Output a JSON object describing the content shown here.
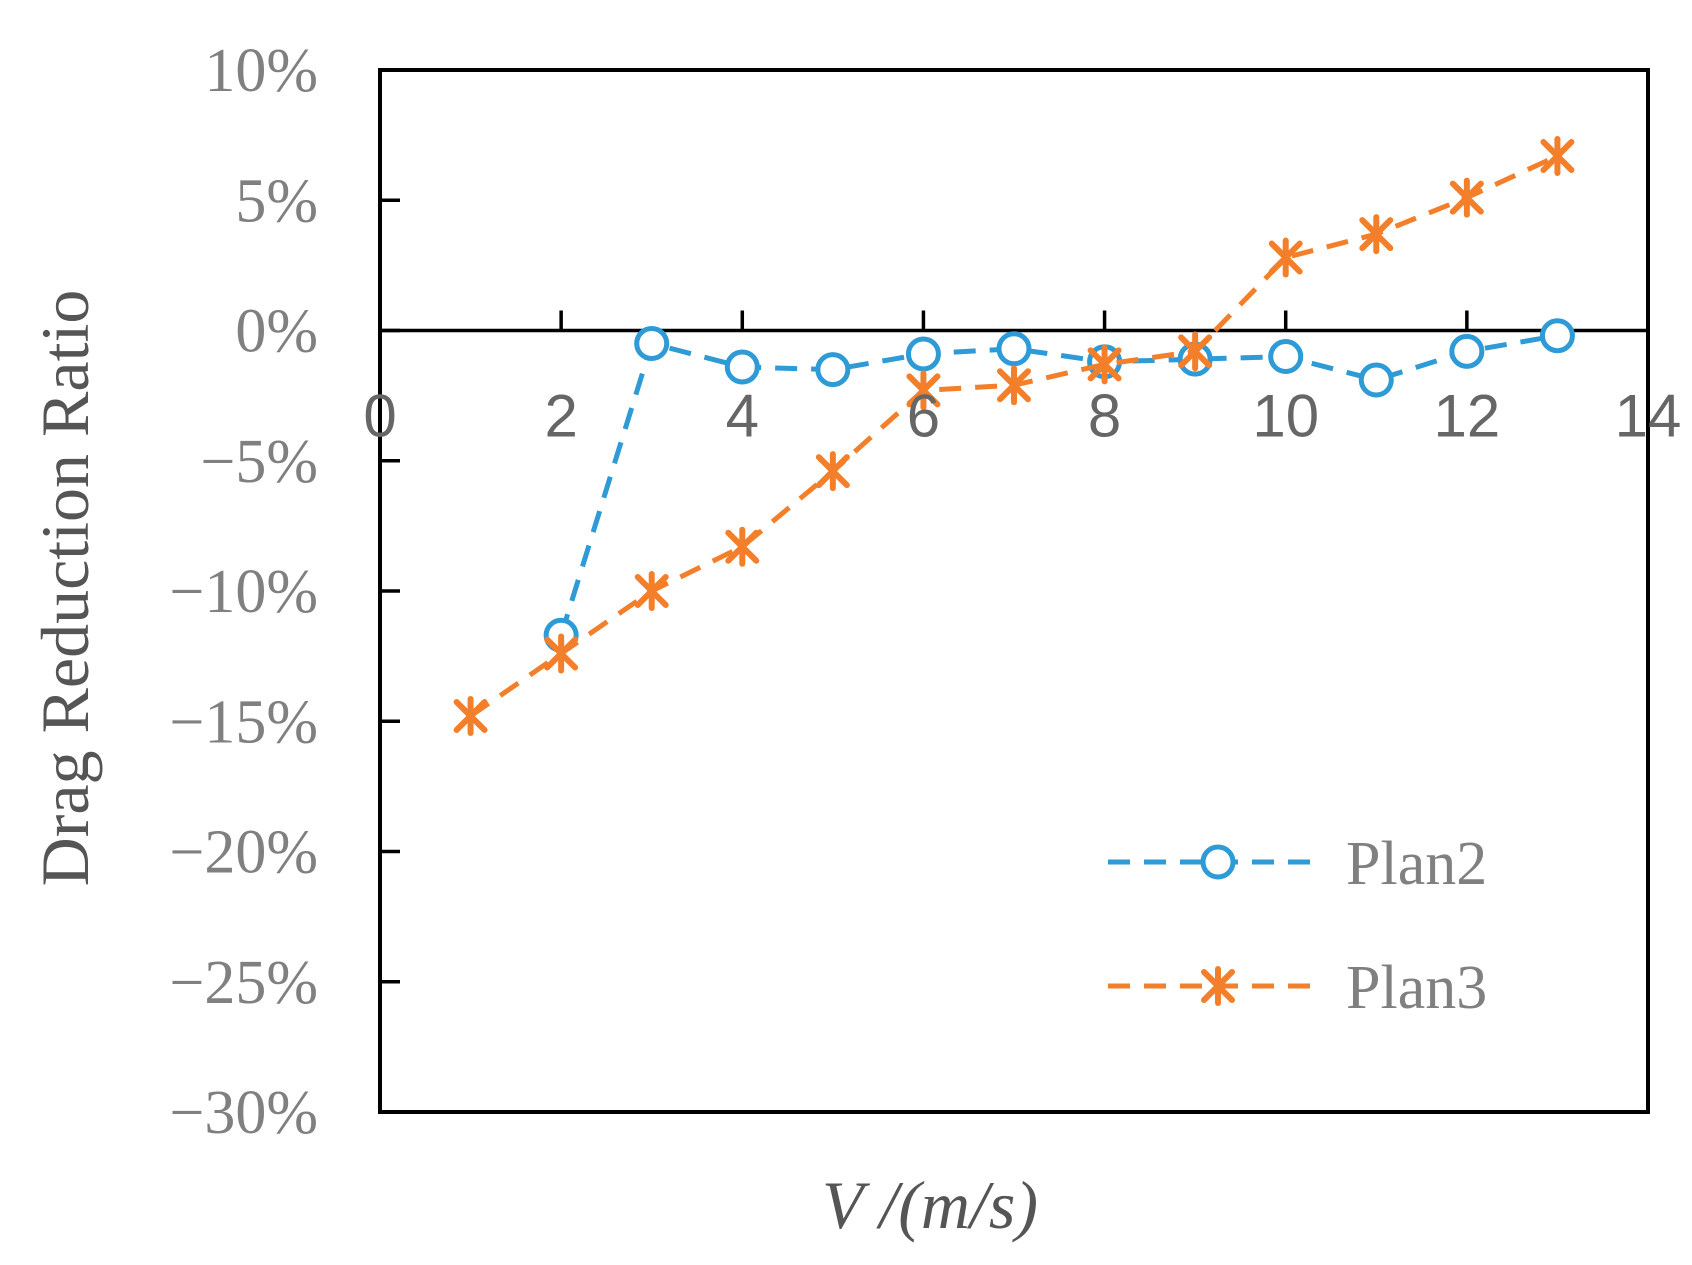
{
  "chart_data": {
    "type": "line",
    "title": "",
    "xlabel": "V /(m/s)",
    "ylabel": "Drag Reduction Ratio",
    "xlim": [
      0,
      14
    ],
    "ylim": [
      -30,
      10
    ],
    "x_ticks": [
      "0",
      "2",
      "4",
      "6",
      "8",
      "10",
      "12",
      "14"
    ],
    "y_ticks": [
      "10%",
      "5%",
      "0%",
      "−5%",
      "−10%",
      "−15%",
      "−20%",
      "−25%",
      "−30%"
    ],
    "y_unit": "%",
    "grid": false,
    "legend_position": "bottom-right",
    "series": [
      {
        "name": "Plan2",
        "color": "#2E9AD6",
        "marker": "circle",
        "line_style": "dashed",
        "x": [
          2,
          3,
          4,
          5,
          6,
          7,
          8,
          9,
          10,
          11,
          12,
          13
        ],
        "y": [
          -11.7,
          -0.5,
          -1.4,
          -1.5,
          -0.9,
          -0.7,
          -1.2,
          -1.1,
          -1.0,
          -1.9,
          -0.8,
          -0.2
        ]
      },
      {
        "name": "Plan3",
        "color": "#F37F2A",
        "marker": "asterisk",
        "line_style": "dashed",
        "x": [
          1,
          2,
          3,
          4,
          5,
          6,
          7,
          8,
          9,
          10,
          11,
          12,
          13
        ],
        "y": [
          -14.8,
          -12.4,
          -10.0,
          -8.3,
          -5.4,
          -2.3,
          -2.1,
          -1.3,
          -0.8,
          2.8,
          3.7,
          5.1,
          6.7
        ]
      }
    ]
  }
}
